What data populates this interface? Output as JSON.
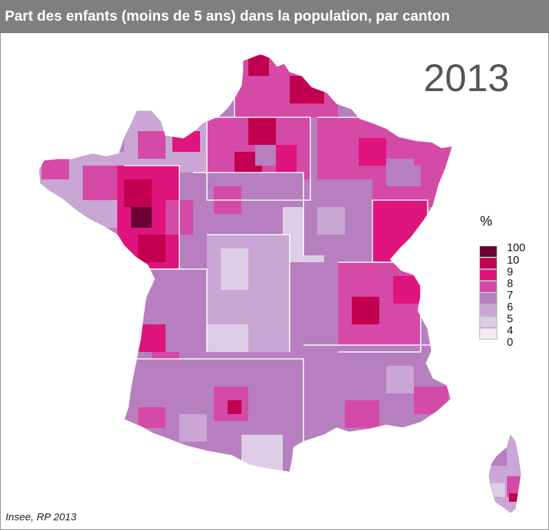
{
  "title": "Part des enfants (moins de 5 ans) dans la population, par canton",
  "year": "2013",
  "legend": {
    "unit": "%",
    "breaks": [
      "100",
      "10",
      "9",
      "8",
      "7",
      "6",
      "5",
      "4",
      "0"
    ],
    "colors": [
      "#6a0033",
      "#c2004f",
      "#e0147d",
      "#d64aa7",
      "#b77fc0",
      "#c9a6d4",
      "#ddcde6",
      "#f2eaf5"
    ]
  },
  "source": "Insee, RP 2013",
  "map": {
    "territory": "France métropolitaine",
    "insets": [
      "Corse"
    ],
    "highest_regions": [
      "Pays de la Loire",
      "Bretagne (est)",
      "Île-de-France (périphérie)",
      "Rhône-Alpes"
    ],
    "lowest_regions": [
      "Massif central",
      "Limousin",
      "Pyrénées"
    ]
  }
}
